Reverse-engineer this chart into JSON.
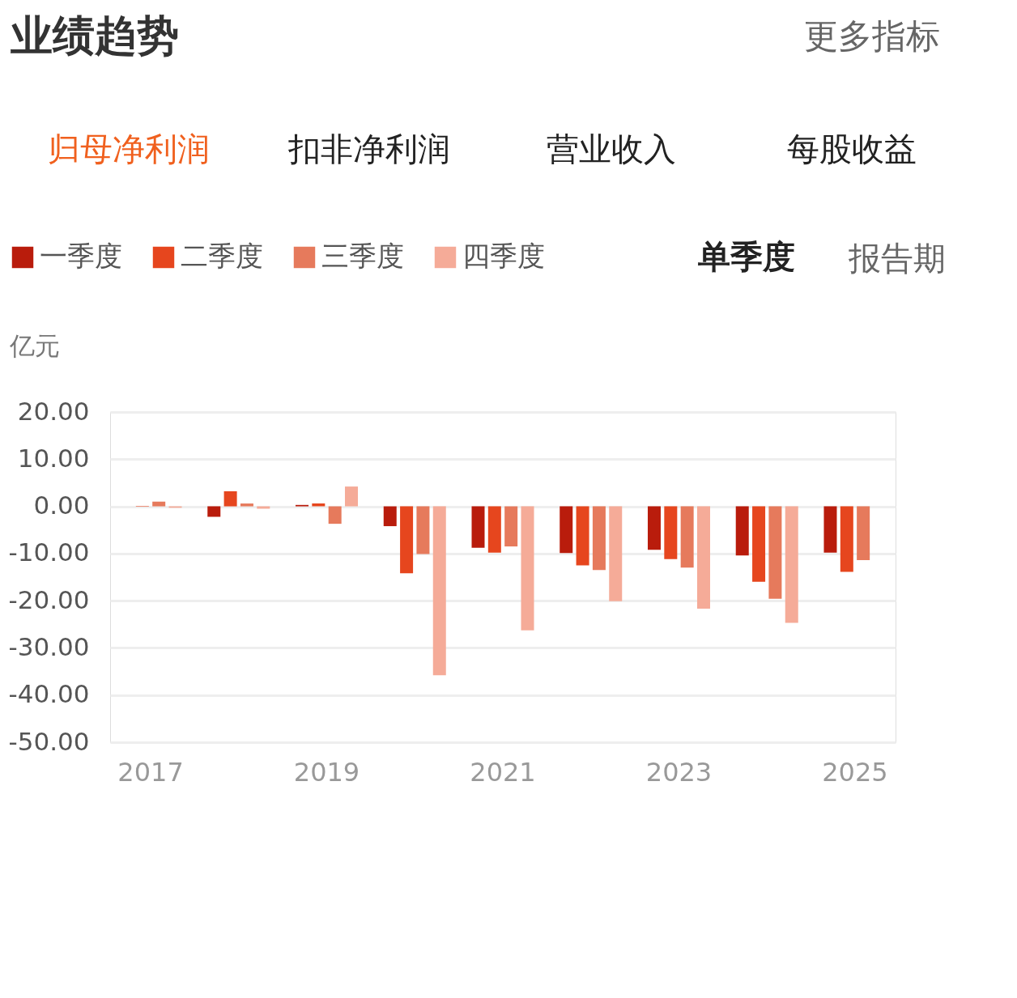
{
  "chart_data": {
    "type": "bar",
    "title": "业绩趋势",
    "annotations": [
      "更多指标",
      "归母净利润",
      "扣非净利润",
      "营业收入",
      "每股收益",
      "单季度",
      "报告期"
    ],
    "ylabel": "亿元",
    "categories": [
      "2017",
      null,
      "2019",
      null,
      "2021",
      null,
      "2023",
      null,
      "2025"
    ],
    "series": [
      {
        "name": "一季度",
        "color": "#b91c0c",
        "values": [
          null,
          -2.2,
          0.3,
          -4.2,
          -8.8,
          -9.9,
          -9.2,
          -10.4,
          -9.8
        ]
      },
      {
        "name": "二季度",
        "color": "#e6461e",
        "values": [
          0.1,
          3.2,
          0.6,
          -14.2,
          -9.8,
          -12.5,
          -11.2,
          -16.0,
          -13.9
        ]
      },
      {
        "name": "三季度",
        "color": "#e67a5c",
        "values": [
          1.0,
          0.6,
          -3.7,
          -10.1,
          -8.5,
          -13.5,
          -13.0,
          -19.6,
          -11.4
        ]
      },
      {
        "name": "四季度",
        "color": "#f5ab98",
        "values": [
          -0.3,
          -0.5,
          4.2,
          -35.8,
          -26.3,
          -20.1,
          -21.7,
          -24.7,
          null
        ]
      }
    ],
    "ylim": [
      -50,
      20
    ],
    "yticks": [
      {
        "value": 20,
        "label": "20.00"
      },
      {
        "value": 10,
        "label": "10.00"
      },
      {
        "value": 0,
        "label": "0.00"
      },
      {
        "value": -10,
        "label": "-10.00"
      },
      {
        "value": -20,
        "label": "-20.00"
      },
      {
        "value": -30,
        "label": "-30.00"
      },
      {
        "value": -40,
        "label": "-40.00"
      },
      {
        "value": -50,
        "label": "-50.00"
      }
    ],
    "grid": "y",
    "legend": "top left"
  }
}
